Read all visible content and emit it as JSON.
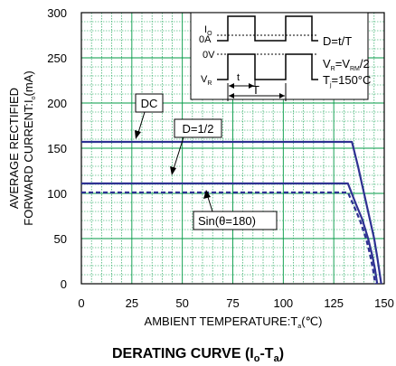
{
  "chart_data": {
    "type": "line",
    "title": "DERATING CURVE (I",
    "title_sub1": "o",
    "title_mid": "-T",
    "title_sub2": "a",
    "title_end": ")",
    "xlabel": "AMBIENT TEMPERATURE:T",
    "xlabel_sub": "a",
    "xlabel_end": "(℃)",
    "ylabel_line1": "AVERAGE RECTIFIED",
    "ylabel_line2": "FORWARD CURRENT:I",
    "ylabel_sub": "o",
    "ylabel_end": "(mA)",
    "xlim": [
      0,
      150
    ],
    "ylim": [
      0,
      300
    ],
    "x_ticks": [
      0,
      25,
      50,
      75,
      100,
      125,
      150
    ],
    "y_ticks": [
      0,
      50,
      100,
      150,
      200,
      250,
      300
    ],
    "grid": true,
    "series": [
      {
        "name": "DC",
        "style": "solid",
        "points": [
          [
            0,
            157
          ],
          [
            134,
            157
          ],
          [
            137,
            130
          ],
          [
            140,
            100
          ],
          [
            143,
            70
          ],
          [
            145,
            50
          ],
          [
            146.5,
            30
          ],
          [
            147.5,
            15
          ],
          [
            148.5,
            0
          ]
        ]
      },
      {
        "name": "D=1/2",
        "style": "solid",
        "points": [
          [
            0,
            111
          ],
          [
            132,
            111
          ],
          [
            136,
            88
          ],
          [
            139,
            72
          ],
          [
            142,
            50
          ],
          [
            144,
            32
          ],
          [
            145.5,
            15
          ],
          [
            146.5,
            0
          ]
        ]
      },
      {
        "name": "Sin(θ=180)",
        "style": "dashed",
        "points": [
          [
            0,
            101
          ],
          [
            132,
            101
          ],
          [
            135,
            86
          ],
          [
            138,
            70
          ],
          [
            141,
            50
          ],
          [
            143,
            32
          ],
          [
            144.5,
            15
          ],
          [
            145.5,
            0
          ]
        ]
      }
    ],
    "annotations": [
      {
        "text": "DC"
      },
      {
        "text": "D=1/2"
      },
      {
        "text": "Sin(θ=180)"
      }
    ],
    "inset": {
      "io": "I",
      "io_sub": "O",
      "zero_a": "0A",
      "zero_v": "0V",
      "vr": "V",
      "vr_sub": "R",
      "t": "t",
      "T": "T",
      "d_formula": "D=t/T",
      "vr_formula_a": "V",
      "vr_formula_sub1": "R",
      "vr_formula_b": "=V",
      "vr_formula_sub2": "RM",
      "vr_formula_c": "/2",
      "tj_a": "T",
      "tj_sub": "j",
      "tj_b": "=150°C"
    },
    "colors": {
      "series": "#2e3192",
      "grid": "#009944",
      "axis": "#000000"
    }
  }
}
